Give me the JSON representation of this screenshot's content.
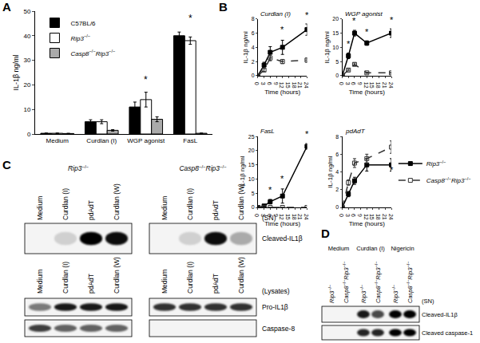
{
  "panel_labels": [
    "A",
    "B",
    "C",
    "D"
  ],
  "chart_data": [
    {
      "type": "bar",
      "y_label": "IL-1β ng/ml",
      "categories": [
        "Medium",
        "Curdlan (I)",
        "WGP agonist",
        "FasL"
      ],
      "series": [
        {
          "name": "C57BL/6",
          "color": "#000000",
          "values": [
            0.3,
            5,
            11,
            40
          ],
          "errors": [
            0.1,
            0.8,
            2,
            1.5
          ]
        },
        {
          "name": "Rip3−/−",
          "color": "#ffffff",
          "values": [
            0.3,
            5,
            14,
            38
          ],
          "errors": [
            0.1,
            0.8,
            3,
            1.5
          ]
        },
        {
          "name": "Casp8−/−Rip3−/−",
          "color": "#aaaaaa",
          "values": [
            0.2,
            1.5,
            6,
            0.3
          ],
          "errors": [
            0.1,
            0.3,
            1,
            0.1
          ]
        }
      ],
      "ylim": [
        0,
        50
      ],
      "yticks": [
        0,
        10,
        20,
        30,
        40,
        50
      ],
      "grid": false,
      "legend": "upper left",
      "annotations": [
        {
          "x": "WGP agonist",
          "y": 19,
          "text": "*"
        },
        {
          "x": "FasL",
          "y": 44,
          "text": "*"
        }
      ]
    },
    {
      "type": "line",
      "title": "Curdlan (I)",
      "x_label": "Time (hours)",
      "y_label": "IL-1β ng/ml",
      "x": [
        0,
        3,
        6,
        12,
        24
      ],
      "series": [
        {
          "name": "Rip3−/−",
          "color": "#000000",
          "line_style": "solid",
          "marker": "square",
          "values": [
            0,
            1.5,
            3.3,
            4,
            6.5
          ],
          "errors": [
            0,
            0.4,
            0.8,
            1,
            0.8
          ]
        },
        {
          "name": "Casp8−/−Rip3−/−",
          "color": "#333333",
          "line_style": "dash",
          "marker": "square-open",
          "values": [
            0,
            0.8,
            2.5,
            2,
            2.2
          ],
          "errors": [
            0,
            0.2,
            0.4,
            0.3,
            0.3
          ]
        }
      ],
      "xlim": [
        0,
        24
      ],
      "xticks": [
        0,
        3,
        6,
        9,
        12,
        15,
        18,
        21,
        24
      ],
      "ylim": [
        0,
        8
      ],
      "yticks": [
        0,
        2,
        4,
        6,
        8
      ],
      "grid": false,
      "annotations": [
        {
          "x": 12,
          "y": 5.6,
          "text": "*"
        },
        {
          "x": 24,
          "y": 7.6,
          "text": "*"
        }
      ]
    },
    {
      "type": "line",
      "title": "WGP agonist",
      "x_label": "Time (hours)",
      "y_label": "IL-1β ng/ml",
      "x": [
        0,
        3,
        6,
        12,
        24
      ],
      "series": [
        {
          "name": "Rip3−/−",
          "color": "#000000",
          "line_style": "solid",
          "marker": "square",
          "values": [
            0,
            7,
            15,
            11.5,
            15
          ],
          "errors": [
            0,
            1,
            1,
            0.8,
            1.5
          ]
        },
        {
          "name": "Casp8−/−Rip3−/−",
          "color": "#333333",
          "line_style": "dash",
          "marker": "square-open",
          "values": [
            0,
            2,
            4,
            1,
            1
          ],
          "errors": [
            0,
            0.3,
            0.5,
            0.2,
            0.2
          ]
        }
      ],
      "xlim": [
        0,
        24
      ],
      "xticks": [
        0,
        3,
        6,
        9,
        12,
        15,
        18,
        21,
        24
      ],
      "ylim": [
        0,
        20
      ],
      "yticks": [
        0,
        5,
        10,
        15,
        20
      ],
      "grid": false,
      "annotations": [
        {
          "x": 3,
          "y": 9,
          "text": "*"
        },
        {
          "x": 6,
          "y": 17,
          "text": "*"
        },
        {
          "x": 12,
          "y": 13.3,
          "text": "*"
        },
        {
          "x": 24,
          "y": 17.5,
          "text": "*"
        }
      ]
    },
    {
      "type": "line",
      "title": "FasL",
      "x_label": "Time (hours)",
      "y_label": "IL-1β ng/ml",
      "x": [
        0,
        3,
        6,
        12,
        24
      ],
      "series": [
        {
          "name": "Rip3−/−",
          "color": "#000000",
          "line_style": "solid",
          "marker": "square",
          "values": [
            0,
            0.5,
            2,
            4,
            21.5
          ],
          "errors": [
            0,
            0.3,
            0.8,
            2.5,
            1
          ]
        },
        {
          "name": "Casp8−/−Rip3−/−",
          "color": "#333333",
          "line_style": "dash",
          "marker": "square-open",
          "values": [
            0,
            0,
            0,
            0,
            0
          ],
          "errors": [
            0,
            0,
            0,
            0,
            0
          ]
        }
      ],
      "xlim": [
        0,
        24
      ],
      "xticks": [
        0,
        3,
        6,
        9,
        12,
        15,
        18,
        21,
        24
      ],
      "ylim": [
        0,
        25
      ],
      "yticks": [
        0,
        5,
        10,
        15,
        20,
        25
      ],
      "grid": false,
      "annotations": [
        {
          "x": 6,
          "y": 4,
          "text": "*"
        },
        {
          "x": 12,
          "y": 8,
          "text": "*"
        },
        {
          "x": 24,
          "y": 23.5,
          "text": "*"
        }
      ]
    },
    {
      "type": "line",
      "title": "pdAdT",
      "x_label": "Time (hours)",
      "y_label": "IL-1β ng/ml",
      "x": [
        0,
        3,
        6,
        12,
        24
      ],
      "series": [
        {
          "name": "Rip3−/−",
          "color": "#000000",
          "line_style": "solid",
          "marker": "square",
          "values": [
            0,
            1.5,
            3,
            4.8,
            4.8
          ],
          "errors": [
            0,
            0.3,
            0.4,
            0.7,
            0.7
          ]
        },
        {
          "name": "Casp8−/−Rip3−/−",
          "color": "#333333",
          "line_style": "dash",
          "marker": "square-open",
          "values": [
            0,
            2.8,
            5,
            5.5,
            6.8
          ],
          "errors": [
            0,
            0.3,
            0.5,
            0.5,
            0.7
          ]
        }
      ],
      "xlim": [
        0,
        24
      ],
      "xticks": [
        0,
        3,
        6,
        9,
        12,
        15,
        18,
        21,
        24
      ],
      "ylim": [
        0,
        8
      ],
      "yticks": [
        0,
        2,
        4,
        6,
        8
      ],
      "grid": false,
      "legend": "right",
      "annotations": [
        {
          "x": 3,
          "y": 0.6,
          "text": "*"
        },
        {
          "x": 6,
          "y": 2.1,
          "text": "*"
        },
        {
          "x": 24,
          "y": 3.5,
          "text": "*"
        }
      ]
    }
  ],
  "blots": [
    {
      "groups": [
        {
          "label": "Rip3−/−",
          "lanes": [
            "Medium",
            "Curdlan (I)",
            "pdAdT",
            "Curdlan (W)"
          ]
        },
        {
          "label": "Casp8−/−Rip3−/−",
          "lanes": [
            "Medium",
            "Curdlan (I)",
            "pdAdT",
            "Curdlan (W)"
          ]
        }
      ],
      "sections": [
        {
          "label": "(SN)",
          "rows": [
            {
              "label": "Cleaved-IL1β",
              "bands": [
                [
                  0,
                  0.15,
                  1,
                  0.95
                ],
                [
                  0,
                  0.15,
                  0.95,
                  0.3
                ]
              ]
            }
          ]
        },
        {
          "label": "(Lysates)",
          "rows": [
            {
              "label": "Pro-IL1β",
              "bands": [
                [
                  0.5,
                  0.9,
                  0.9,
                  0.9
                ],
                [
                  0.8,
                  0.8,
                  0.8,
                  0.8
                ]
              ]
            },
            {
              "label": "Caspase-8",
              "bands": [
                [
                  0.75,
                  0.6,
                  0.6,
                  0.6
                ],
                [
                  0,
                  0,
                  0,
                  0
                ]
              ]
            }
          ]
        }
      ]
    },
    {
      "groups": [
        {
          "label": "Medium",
          "lanes": [
            "Rip3−/−",
            "Casp8−/−Rip3−/−"
          ]
        },
        {
          "label": "Curdlan (I)",
          "lanes": [
            "Rip3−/−",
            "Casp8−/−Rip3−/−"
          ]
        },
        {
          "label": "Nigericin",
          "lanes": [
            "Rip3−/−",
            "Casp8−/−Rip3−/−"
          ]
        }
      ],
      "sections": [
        {
          "label": "(SN)",
          "rows": [
            {
              "label": "Cleaved-IL1β",
              "bands": [
                [
                  0,
                  0
                ],
                [
                  0.9,
                  0.7
                ],
                [
                  1,
                  1
                ]
              ]
            },
            {
              "label": "Cleaved caspase-1",
              "bands": [
                [
                  0,
                  0
                ],
                [
                  0.85,
                  0.85
                ],
                [
                  1,
                  1
                ]
              ]
            }
          ]
        }
      ]
    }
  ]
}
